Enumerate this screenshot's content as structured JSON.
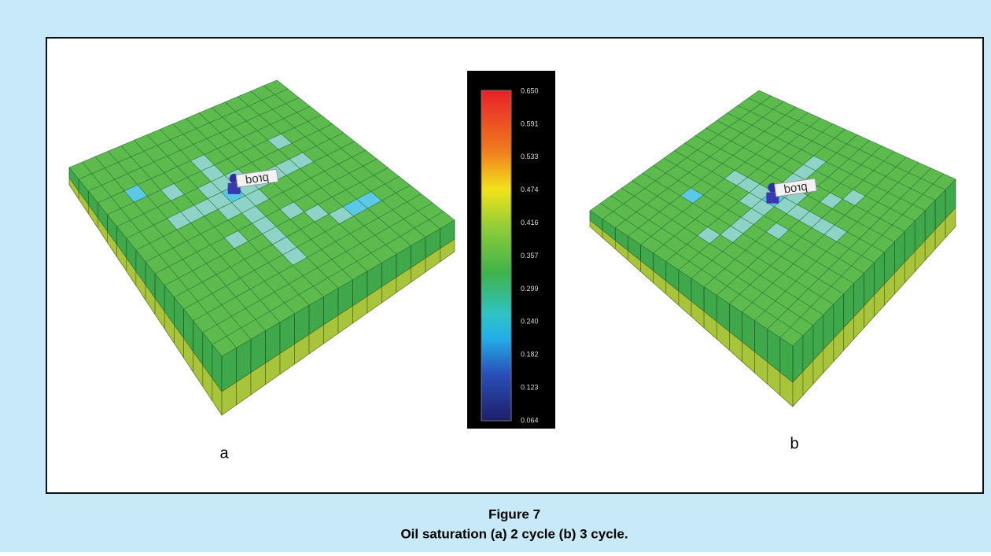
{
  "figure": {
    "panels": [
      {
        "label": "a",
        "well": "prod"
      },
      {
        "label": "b",
        "well": "prod"
      }
    ],
    "colorbar": {
      "ticks": [
        "0.650",
        "0.591",
        "0.533",
        "0.474",
        "0.416",
        "0.357",
        "0.299",
        "0.240",
        "0.182",
        "0.123",
        "0.064"
      ]
    },
    "number": "Figure 7",
    "caption": "Oil saturation (a) 2 cycle (b) 3 cycle."
  }
}
